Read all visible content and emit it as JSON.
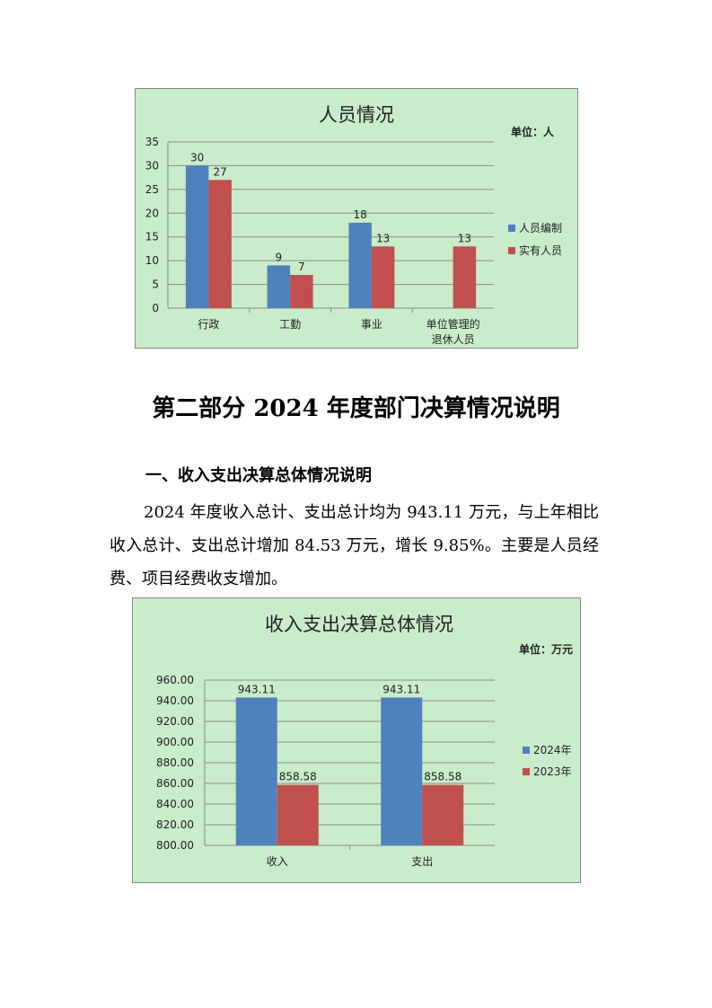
{
  "chart_data": [
    {
      "type": "bar",
      "title": "人员情况",
      "unit_note": "单位：人",
      "categories": [
        "行政",
        "工勤",
        "事业",
        "单位管理的\n退休人员"
      ],
      "series": [
        {
          "name": "人员编制",
          "color": "#4f81bd",
          "values": [
            30,
            9,
            18,
            null
          ]
        },
        {
          "name": "实有人员",
          "color": "#c0504d",
          "values": [
            27,
            7,
            13,
            13
          ]
        }
      ],
      "ylim": [
        0,
        35
      ],
      "yticks": [
        "0",
        "5",
        "10",
        "15",
        "20",
        "25",
        "30",
        "35"
      ],
      "grid": true,
      "legend": "right"
    },
    {
      "type": "bar",
      "title": "收入支出决算总体情况",
      "unit_note": "单位：万元",
      "categories": [
        "收入",
        "支出"
      ],
      "series": [
        {
          "name": "2024年",
          "color": "#4f81bd",
          "values": [
            943.11,
            943.11
          ]
        },
        {
          "name": "2023年",
          "color": "#c0504d",
          "values": [
            858.58,
            858.58
          ]
        }
      ],
      "ylim": [
        800,
        960
      ],
      "yticks": [
        "800.00",
        "820.00",
        "840.00",
        "860.00",
        "880.00",
        "900.00",
        "920.00",
        "940.00",
        "960.00"
      ],
      "grid": true,
      "legend": "right"
    }
  ],
  "doc": {
    "part_title": "第二部分  2024 年度部门决算情况说明",
    "section_title": "一、收入支出决算总体情况说明",
    "paragraph": "2024 年度收入总计、支出总计均为 943.11 万元，与上年相比收入总计、支出总计增加 84.53 万元，增长 9.85%。主要是人员经费、项目经费收支增加。"
  }
}
